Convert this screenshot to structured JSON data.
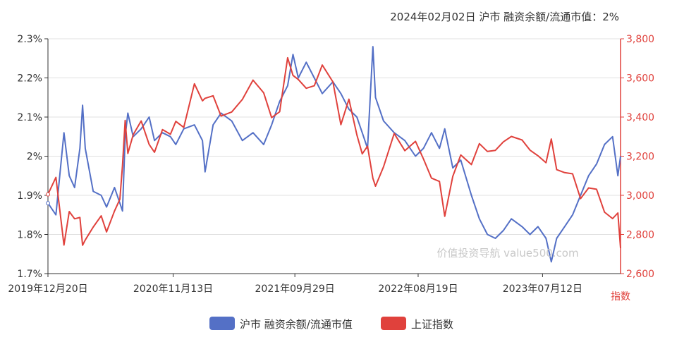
{
  "chart_data": {
    "type": "line",
    "title": "2024年02月02日 沪市 融资余额/流通市值：2%",
    "watermark": "价值投资导航 value500.com",
    "x_tick_labels": [
      "2019年12月20日",
      "2020年11月13日",
      "2021年09月29日",
      "2022年08月19日",
      "2023年07月12日"
    ],
    "x_range": [
      "2019-12-20",
      "2024-02-02"
    ],
    "y_left": {
      "tick_labels": [
        "1.7%",
        "1.8%",
        "1.9%",
        "2%",
        "2.1%",
        "2.2%",
        "2.3%"
      ],
      "range": [
        1.7,
        2.3
      ]
    },
    "y_right": {
      "label": "指数",
      "tick_labels": [
        "2,600",
        "2,800",
        "3,000",
        "3,200",
        "3,400",
        "3,600",
        "3,800"
      ],
      "range": [
        2600,
        3800
      ]
    },
    "series": [
      {
        "name": "沪市 融资余额/流通市值",
        "axis": "left",
        "color": "#5470c6",
        "points": [
          [
            "2019-12-20",
            1.88
          ],
          [
            "2020-01-10",
            1.85
          ],
          [
            "2020-01-31",
            2.06
          ],
          [
            "2020-02-14",
            1.95
          ],
          [
            "2020-02-28",
            1.92
          ],
          [
            "2020-03-13",
            2.02
          ],
          [
            "2020-03-20",
            2.13
          ],
          [
            "2020-03-27",
            2.02
          ],
          [
            "2020-04-17",
            1.91
          ],
          [
            "2020-05-08",
            1.9
          ],
          [
            "2020-05-22",
            1.87
          ],
          [
            "2020-06-12",
            1.92
          ],
          [
            "2020-06-26",
            1.88
          ],
          [
            "2020-07-03",
            1.86
          ],
          [
            "2020-07-10",
            2.05
          ],
          [
            "2020-07-17",
            2.11
          ],
          [
            "2020-07-31",
            2.05
          ],
          [
            "2020-08-21",
            2.07
          ],
          [
            "2020-09-11",
            2.1
          ],
          [
            "2020-09-25",
            2.04
          ],
          [
            "2020-10-16",
            2.06
          ],
          [
            "2020-11-06",
            2.05
          ],
          [
            "2020-11-20",
            2.03
          ],
          [
            "2020-12-11",
            2.07
          ],
          [
            "2021-01-08",
            2.08
          ],
          [
            "2021-01-29",
            2.04
          ],
          [
            "2021-02-05",
            1.96
          ],
          [
            "2021-02-26",
            2.08
          ],
          [
            "2021-03-19",
            2.11
          ],
          [
            "2021-04-16",
            2.09
          ],
          [
            "2021-05-14",
            2.04
          ],
          [
            "2021-06-11",
            2.06
          ],
          [
            "2021-07-09",
            2.03
          ],
          [
            "2021-07-30",
            2.08
          ],
          [
            "2021-08-20",
            2.14
          ],
          [
            "2021-09-10",
            2.18
          ],
          [
            "2021-09-24",
            2.26
          ],
          [
            "2021-10-08",
            2.2
          ],
          [
            "2021-10-29",
            2.24
          ],
          [
            "2021-11-19",
            2.2
          ],
          [
            "2021-12-10",
            2.16
          ],
          [
            "2022-01-07",
            2.19
          ],
          [
            "2022-01-28",
            2.16
          ],
          [
            "2022-02-18",
            2.12
          ],
          [
            "2022-03-11",
            2.1
          ],
          [
            "2022-03-25",
            2.06
          ],
          [
            "2022-04-08",
            2.02
          ],
          [
            "2022-04-22",
            2.28
          ],
          [
            "2022-04-29",
            2.15
          ],
          [
            "2022-05-20",
            2.09
          ],
          [
            "2022-06-17",
            2.06
          ],
          [
            "2022-07-15",
            2.04
          ],
          [
            "2022-08-12",
            2.0
          ],
          [
            "2022-09-02",
            2.02
          ],
          [
            "2022-09-23",
            2.06
          ],
          [
            "2022-10-14",
            2.02
          ],
          [
            "2022-10-28",
            2.07
          ],
          [
            "2022-11-18",
            1.97
          ],
          [
            "2022-12-09",
            1.99
          ],
          [
            "2023-01-06",
            1.9
          ],
          [
            "2023-01-27",
            1.84
          ],
          [
            "2023-02-17",
            1.8
          ],
          [
            "2023-03-10",
            1.79
          ],
          [
            "2023-03-31",
            1.81
          ],
          [
            "2023-04-21",
            1.84
          ],
          [
            "2023-05-19",
            1.82
          ],
          [
            "2023-06-09",
            1.8
          ],
          [
            "2023-06-30",
            1.82
          ],
          [
            "2023-07-21",
            1.79
          ],
          [
            "2023-08-04",
            1.73
          ],
          [
            "2023-08-18",
            1.79
          ],
          [
            "2023-09-08",
            1.82
          ],
          [
            "2023-09-29",
            1.85
          ],
          [
            "2023-10-20",
            1.9
          ],
          [
            "2023-11-10",
            1.95
          ],
          [
            "2023-12-01",
            1.98
          ],
          [
            "2023-12-22",
            2.03
          ],
          [
            "2024-01-12",
            2.05
          ],
          [
            "2024-01-26",
            1.95
          ],
          [
            "2024-02-02",
            2.0
          ]
        ]
      },
      {
        "name": "上证指数",
        "axis": "right",
        "color": "#e0413c",
        "points": [
          [
            "2019-12-20",
            3005
          ],
          [
            "2020-01-10",
            3092
          ],
          [
            "2020-01-31",
            2746
          ],
          [
            "2020-02-14",
            2917
          ],
          [
            "2020-02-28",
            2880
          ],
          [
            "2020-03-13",
            2887
          ],
          [
            "2020-03-20",
            2745
          ],
          [
            "2020-03-27",
            2772
          ],
          [
            "2020-04-17",
            2838
          ],
          [
            "2020-05-08",
            2895
          ],
          [
            "2020-05-22",
            2813
          ],
          [
            "2020-06-12",
            2920
          ],
          [
            "2020-06-26",
            2980
          ],
          [
            "2020-07-03",
            3152
          ],
          [
            "2020-07-10",
            3383
          ],
          [
            "2020-07-17",
            3214
          ],
          [
            "2020-07-31",
            3310
          ],
          [
            "2020-08-21",
            3380
          ],
          [
            "2020-09-11",
            3260
          ],
          [
            "2020-09-25",
            3220
          ],
          [
            "2020-10-16",
            3336
          ],
          [
            "2020-11-06",
            3312
          ],
          [
            "2020-11-20",
            3378
          ],
          [
            "2020-12-11",
            3347
          ],
          [
            "2021-01-08",
            3570
          ],
          [
            "2021-01-29",
            3483
          ],
          [
            "2021-02-05",
            3496
          ],
          [
            "2021-02-26",
            3509
          ],
          [
            "2021-03-19",
            3405
          ],
          [
            "2021-04-16",
            3426
          ],
          [
            "2021-05-14",
            3490
          ],
          [
            "2021-06-11",
            3589
          ],
          [
            "2021-07-09",
            3524
          ],
          [
            "2021-07-30",
            3397
          ],
          [
            "2021-08-20",
            3427
          ],
          [
            "2021-09-10",
            3703
          ],
          [
            "2021-09-24",
            3613
          ],
          [
            "2021-10-08",
            3592
          ],
          [
            "2021-10-29",
            3547
          ],
          [
            "2021-11-19",
            3560
          ],
          [
            "2021-12-10",
            3666
          ],
          [
            "2022-01-07",
            3580
          ],
          [
            "2022-01-28",
            3361
          ],
          [
            "2022-02-18",
            3491
          ],
          [
            "2022-03-11",
            3309
          ],
          [
            "2022-03-25",
            3212
          ],
          [
            "2022-04-08",
            3251
          ],
          [
            "2022-04-22",
            3087
          ],
          [
            "2022-04-29",
            3047
          ],
          [
            "2022-05-20",
            3146
          ],
          [
            "2022-06-17",
            3316
          ],
          [
            "2022-07-15",
            3228
          ],
          [
            "2022-08-12",
            3276
          ],
          [
            "2022-09-02",
            3186
          ],
          [
            "2022-09-23",
            3088
          ],
          [
            "2022-10-14",
            3071
          ],
          [
            "2022-10-28",
            2893
          ],
          [
            "2022-11-18",
            3097
          ],
          [
            "2022-12-09",
            3206
          ],
          [
            "2023-01-06",
            3157
          ],
          [
            "2023-01-27",
            3264
          ],
          [
            "2023-02-17",
            3224
          ],
          [
            "2023-03-10",
            3230
          ],
          [
            "2023-03-31",
            3273
          ],
          [
            "2023-04-21",
            3301
          ],
          [
            "2023-05-19",
            3283
          ],
          [
            "2023-06-09",
            3231
          ],
          [
            "2023-06-30",
            3202
          ],
          [
            "2023-07-21",
            3167
          ],
          [
            "2023-08-04",
            3288
          ],
          [
            "2023-08-18",
            3131
          ],
          [
            "2023-09-08",
            3116
          ],
          [
            "2023-09-29",
            3110
          ],
          [
            "2023-10-20",
            2983
          ],
          [
            "2023-11-10",
            3038
          ],
          [
            "2023-12-01",
            3031
          ],
          [
            "2023-12-22",
            2914
          ],
          [
            "2024-01-12",
            2881
          ],
          [
            "2024-01-26",
            2910
          ],
          [
            "2024-02-02",
            2730
          ]
        ]
      }
    ],
    "legend": {
      "position": "bottom-center",
      "items": [
        "沪市 融资余额/流通市值",
        "上证指数"
      ]
    },
    "grid": true
  }
}
